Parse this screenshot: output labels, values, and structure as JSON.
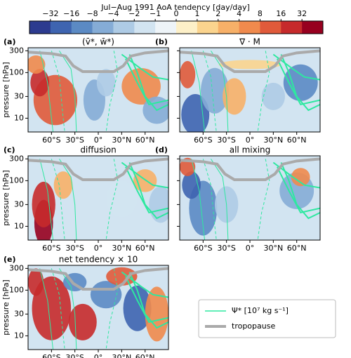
{
  "colorbar": {
    "title": "Jul−Aug 1991 AoA tendency [day/day]",
    "ticks": [
      {
        "value": -32,
        "label": "−32"
      },
      {
        "value": -16,
        "label": "−16"
      },
      {
        "value": -8,
        "label": "−8"
      },
      {
        "value": -4,
        "label": "−4"
      },
      {
        "value": -2,
        "label": "−2"
      },
      {
        "value": -1,
        "label": "−1"
      },
      0,
      1,
      2,
      4,
      8,
      16,
      32
    ],
    "colors": [
      "#2c3b8f",
      "#3e64b0",
      "#5b8ac4",
      "#85acd6",
      "#aecbe5",
      "#d2e4f1",
      "#eef4f8",
      "#fdf0c8",
      "#fbd48e",
      "#f7b068",
      "#f08a4d",
      "#e05a3a",
      "#c62a2b",
      "#97001f"
    ]
  },
  "panels": [
    {
      "label": "(a)",
      "title": "(v̄*, w̄*)"
    },
    {
      "label": "(b)",
      "title": "∇ · M"
    },
    {
      "label": "(c)",
      "title": "diffusion"
    },
    {
      "label": "(d)",
      "title": "all mixing"
    },
    {
      "label": "(e)",
      "title": "net tendency × 10"
    }
  ],
  "axes": {
    "ylabel": "pressure [hPa]",
    "ylog": true,
    "ylim": [
      350,
      5
    ],
    "yticks": [
      10,
      30,
      100,
      300
    ],
    "xlim": [
      -90,
      90
    ],
    "xticks": [
      {
        "value": -60,
        "label": "60°S"
      },
      {
        "value": -30,
        "label": "30°S"
      },
      {
        "value": 0,
        "label": "0°"
      },
      {
        "value": 30,
        "label": "30°N"
      },
      {
        "value": 60,
        "label": "60°N"
      }
    ]
  },
  "legend": {
    "entries": [
      {
        "name": "Ψ* [10⁷ kg s⁻¹]",
        "color": "#2ee8a0"
      },
      {
        "name": "tropopause",
        "color": "#aaaaaa"
      }
    ]
  }
}
